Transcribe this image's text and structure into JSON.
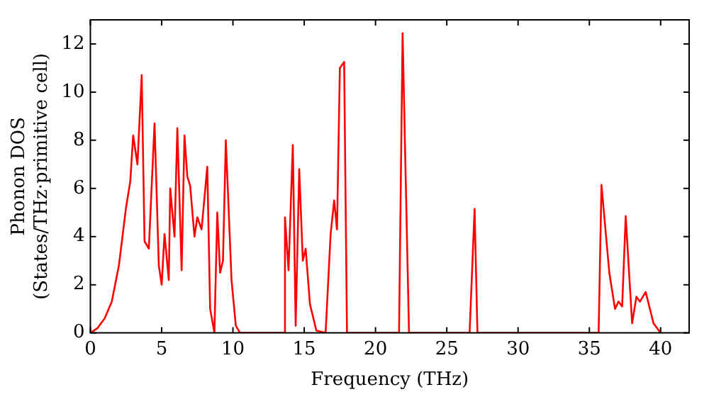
{
  "chart_data": {
    "type": "line",
    "xlabel": "Frequency (THz)",
    "ylabel": "Phonon DOS\n(States/THz·primitive cell)",
    "xlim": [
      0,
      42
    ],
    "ylim": [
      0,
      13
    ],
    "xticks": [
      0,
      5,
      10,
      15,
      20,
      25,
      30,
      35,
      40
    ],
    "yticks": [
      0,
      2,
      4,
      6,
      8,
      10,
      12
    ],
    "grid": false,
    "legend": false,
    "marker": "none",
    "line_style": "solid",
    "series": [
      {
        "color": "#ff0000",
        "x": [
          0,
          0.5,
          1,
          1.5,
          2,
          2.5,
          2.8,
          3,
          3.3,
          3.6,
          3.8,
          4.1,
          4.5,
          4.8,
          5,
          5.2,
          5.5,
          5.6,
          5.9,
          6.1,
          6.4,
          6.6,
          6.8,
          7,
          7.3,
          7.5,
          7.8,
          8.2,
          8.4,
          8.7,
          8.9,
          9.1,
          9.3,
          9.5,
          9.9,
          10.2,
          10.5,
          13.6,
          13.65,
          13.9,
          14.2,
          14.4,
          14.65,
          14.9,
          15.1,
          15.4,
          15.85,
          16.5,
          16.85,
          17.1,
          17.3,
          17.5,
          17.8,
          18,
          21.65,
          21.9,
          22.35,
          26.6,
          26.95,
          27.15,
          35.65,
          35.85,
          36.4,
          36.8,
          37.05,
          37.3,
          37.55,
          38,
          38.3,
          38.55,
          38.95,
          39.5,
          40
        ],
        "values": [
          0,
          0.2,
          0.6,
          1.3,
          2.8,
          5.2,
          6.3,
          8.2,
          7,
          10.7,
          3.8,
          3.5,
          8.7,
          2.8,
          2,
          4.1,
          2.2,
          6,
          4,
          8.5,
          2.6,
          8.2,
          6.5,
          6.1,
          4,
          4.8,
          4.3,
          6.9,
          1,
          0,
          5,
          2.5,
          3,
          8,
          2.2,
          0.3,
          0,
          0,
          4.8,
          2.6,
          7.8,
          0.3,
          6.8,
          3,
          3.5,
          1.2,
          0.1,
          0,
          4.1,
          5.5,
          4.3,
          11,
          11.25,
          0,
          0,
          12.45,
          0,
          0,
          5.15,
          0,
          0,
          6.15,
          2.5,
          1,
          1.3,
          1.1,
          4.85,
          0.4,
          1.5,
          1.3,
          1.7,
          0.4,
          0
        ]
      }
    ]
  }
}
